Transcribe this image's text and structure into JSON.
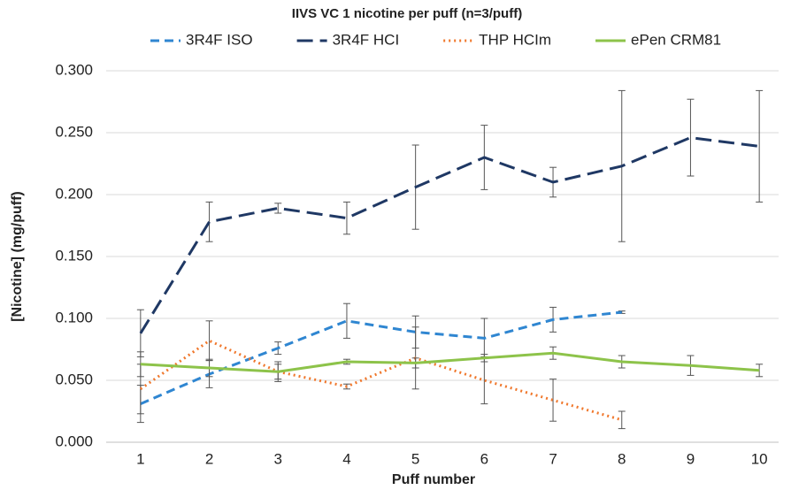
{
  "chart_data": {
    "type": "line",
    "title": "IIVS VC 1 nicotine per puff (n=3/puff)",
    "x_label": "Puff number",
    "y_label": "[Nicotine] (mg/puff)",
    "x": [
      1,
      2,
      3,
      4,
      5,
      6,
      7,
      8,
      9,
      10
    ],
    "xlim": [
      0.5,
      10.5
    ],
    "xticks": [
      1,
      2,
      3,
      4,
      5,
      6,
      7,
      8,
      9,
      10
    ],
    "ylim": [
      0,
      0.3
    ],
    "yticks": [
      {
        "value": 0,
        "label": "0.000"
      },
      {
        "value": 0.05,
        "label": "0.050"
      },
      {
        "value": 0.1,
        "label": "0.100"
      },
      {
        "value": 0.15,
        "label": "0.150"
      },
      {
        "value": 0.2,
        "label": "0.200"
      },
      {
        "value": 0.25,
        "label": "0.250"
      },
      {
        "value": 0.3,
        "label": "0.300"
      }
    ],
    "grid": true,
    "legend": "top",
    "series": [
      {
        "name": "3R4F ISO",
        "color": "#2f86d1",
        "dash": "10 6",
        "values": [
          0.031,
          0.055,
          0.076,
          0.098,
          0.089,
          0.084,
          0.099,
          0.105,
          null,
          null
        ],
        "errors": [
          0.015,
          0.011,
          0.005,
          0.014,
          0.013,
          0.016,
          0.01,
          0.001,
          null,
          null
        ]
      },
      {
        "name": "3R4F HCI",
        "color": "#1f3864",
        "dash": "18 8",
        "values": [
          0.088,
          0.178,
          0.189,
          0.181,
          0.206,
          0.23,
          0.21,
          0.223,
          0.246,
          0.239
        ],
        "errors": [
          0.019,
          0.016,
          0.004,
          0.013,
          0.034,
          0.026,
          0.012,
          0.061,
          0.031,
          0.045
        ]
      },
      {
        "name": "THP HCIm",
        "color": "#f0782d",
        "dash": "2 4",
        "values": [
          0.043,
          0.082,
          0.057,
          0.045,
          0.068,
          0.05,
          0.034,
          0.018,
          null,
          null
        ],
        "errors": [
          0.02,
          0.016,
          0.008,
          0.002,
          0.025,
          0.019,
          0.017,
          0.007,
          null,
          null
        ]
      },
      {
        "name": "ePen CRM81",
        "color": "#8dc34a",
        "dash": "",
        "values": [
          0.063,
          0.06,
          0.057,
          0.065,
          0.064,
          0.068,
          0.072,
          0.065,
          0.062,
          0.058
        ],
        "errors": [
          0.01,
          0.007,
          0.006,
          0.002,
          0.004,
          0.003,
          0.005,
          0.005,
          0.008,
          0.005
        ]
      }
    ]
  }
}
